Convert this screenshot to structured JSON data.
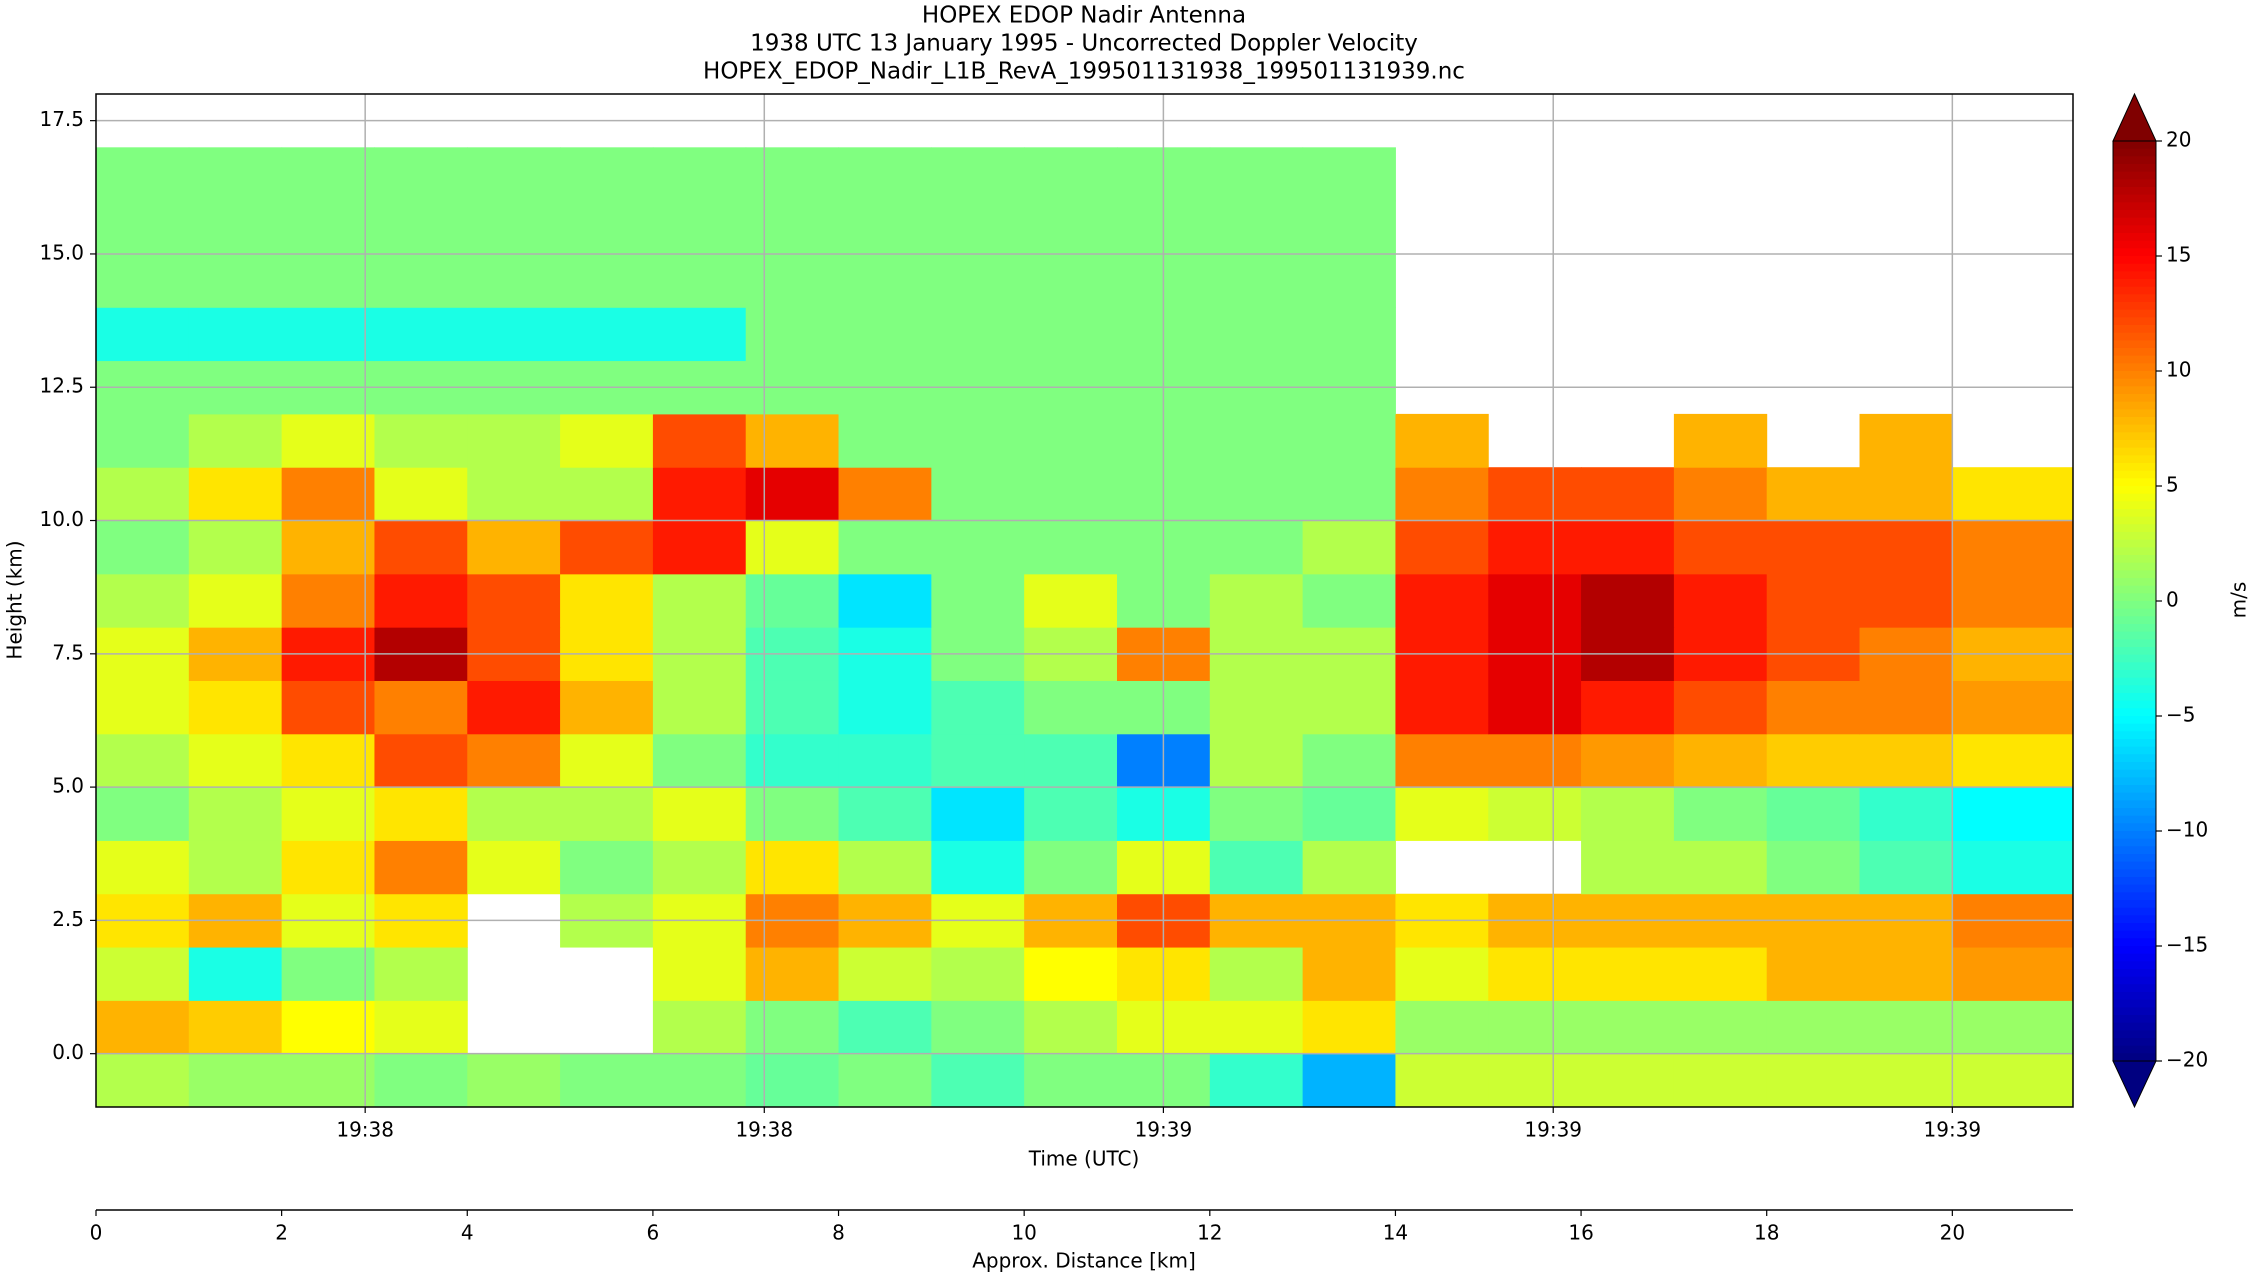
{
  "chart_data": {
    "type": "heatmap",
    "title": "HOPEX EDOP Nadir Antenna",
    "subtitle": [
      "1938 UTC 13 January 1995 - Uncorrected Doppler Velocity",
      "HOPEX_EDOP_Nadir_L1B_RevA_199501131938_199501131939.nc"
    ],
    "xlabel": "Time (UTC)",
    "ylabel": "Height (km)",
    "distance_label": "Approx. Distance [km]",
    "xlim": [
      0,
      21.3
    ],
    "ylim": [
      -1,
      18
    ],
    "xticks": [
      {
        "value": 2.9,
        "label": "19:38"
      },
      {
        "value": 7.2,
        "label": "19:38"
      },
      {
        "value": 11.5,
        "label": "19:39"
      },
      {
        "value": 15.7,
        "label": "19:39"
      },
      {
        "value": 20,
        "label": "19:39"
      }
    ],
    "distance_ticks": [
      0,
      2,
      4,
      6,
      8,
      10,
      12,
      14,
      16,
      18,
      20
    ],
    "yticks": [
      {
        "value": 0,
        "label": "0.0"
      },
      2.5,
      {
        "value": 5,
        "label": "5.0"
      },
      7.5,
      {
        "value": 10,
        "label": "10.0"
      },
      12.5,
      {
        "value": 15,
        "label": "15.0"
      },
      17.5
    ],
    "grid": true,
    "xbins": [
      0,
      1,
      2,
      3,
      4,
      5,
      6,
      7,
      8,
      9,
      10,
      11,
      12,
      13,
      14,
      15,
      16,
      17,
      18,
      19,
      20,
      21.3
    ],
    "ybins": [
      -1,
      0,
      1,
      2,
      3,
      4,
      5,
      6,
      7,
      8,
      9,
      10,
      11,
      12,
      13,
      14,
      15,
      16,
      17,
      18
    ],
    "values": [
      [
        2,
        1,
        1,
        0,
        1,
        0,
        0,
        -1,
        0,
        -2,
        0,
        0,
        -3,
        -8,
        3,
        3,
        3,
        3,
        3,
        3,
        3
      ],
      [
        8,
        7,
        5,
        4,
        null,
        null,
        2,
        0,
        -2,
        0,
        2,
        4,
        4,
        6,
        1,
        1,
        1,
        1,
        1,
        1,
        1
      ],
      [
        3,
        -4,
        0,
        2,
        null,
        null,
        4,
        8,
        3,
        2,
        5,
        6,
        2,
        8,
        4,
        6,
        6,
        6,
        8,
        8,
        9
      ],
      [
        6,
        8,
        4,
        6,
        null,
        2,
        4,
        10,
        8,
        4,
        8,
        12,
        8,
        8,
        6,
        8,
        8,
        8,
        8,
        8,
        10
      ],
      [
        4,
        2,
        6,
        10,
        4,
        0,
        2,
        6,
        2,
        -4,
        0,
        4,
        -2,
        2,
        null,
        null,
        2,
        2,
        0,
        -2,
        -4
      ],
      [
        0,
        2,
        4,
        6,
        2,
        2,
        4,
        0,
        -2,
        -6,
        -2,
        -4,
        0,
        -1,
        4,
        3,
        2,
        0,
        -1,
        -3,
        -5
      ],
      [
        2,
        4,
        6,
        12,
        10,
        4,
        0,
        -3,
        -3,
        -2,
        -2,
        -10,
        2,
        0,
        10,
        10,
        9,
        8,
        7,
        7,
        6
      ],
      [
        4,
        6,
        12,
        10,
        14,
        8,
        2,
        -2,
        -4,
        -2,
        0,
        0,
        2,
        2,
        14,
        16,
        14,
        12,
        10,
        10,
        9
      ],
      [
        4,
        8,
        14,
        18,
        12,
        6,
        2,
        -2,
        -4,
        0,
        2,
        10,
        2,
        2,
        14,
        16,
        18,
        14,
        12,
        10,
        8
      ],
      [
        2,
        4,
        10,
        14,
        12,
        6,
        2,
        -1,
        -6,
        0,
        4,
        0,
        2,
        0,
        14,
        16,
        18,
        14,
        12,
        12,
        10
      ],
      [
        0,
        2,
        8,
        12,
        8,
        12,
        14,
        4,
        0,
        0,
        0,
        0,
        0,
        2,
        12,
        14,
        14,
        12,
        12,
        12,
        10
      ],
      [
        2,
        6,
        10,
        4,
        2,
        2,
        14,
        16,
        10,
        0,
        0,
        0,
        0,
        0,
        10,
        12,
        12,
        10,
        8,
        8,
        6
      ],
      [
        0,
        2,
        4,
        2,
        2,
        4,
        12,
        8,
        0,
        0,
        0,
        0,
        0,
        0,
        8,
        null,
        null,
        8,
        null,
        8,
        null
      ],
      [
        0,
        0,
        0,
        0,
        0,
        0,
        0,
        0,
        0,
        0,
        0,
        0,
        0,
        0,
        null,
        null,
        null,
        null,
        null,
        null,
        null
      ],
      [
        -4,
        -4,
        -4,
        -4,
        -4,
        -4,
        -4,
        0,
        0,
        0,
        0,
        0,
        0,
        0,
        null,
        null,
        null,
        null,
        null,
        null,
        null
      ],
      [
        0,
        0,
        0,
        0,
        0,
        0,
        0,
        0,
        0,
        0,
        0,
        0,
        0,
        0,
        null,
        null,
        null,
        null,
        null,
        null,
        null
      ],
      [
        0,
        0,
        0,
        0,
        0,
        0,
        0,
        0,
        0,
        0,
        0,
        0,
        0,
        0,
        null,
        null,
        null,
        null,
        null,
        null,
        null
      ],
      [
        0,
        0,
        0,
        0,
        0,
        0,
        0,
        0,
        0,
        0,
        0,
        0,
        0,
        0,
        null,
        null,
        null,
        null,
        null,
        null,
        null
      ],
      [
        null,
        null,
        null,
        null,
        null,
        null,
        null,
        null,
        null,
        null,
        null,
        null,
        null,
        null,
        null,
        null,
        null,
        null,
        null,
        null,
        null
      ]
    ],
    "colorbar": {
      "label": "m/s",
      "colormap": "jet",
      "lim": [
        -20,
        20
      ],
      "ticks": [
        {
          "value": -20,
          "label": "−20"
        },
        {
          "value": -15,
          "label": "−15"
        },
        {
          "value": -10,
          "label": "−10"
        },
        {
          "value": -5,
          "label": "−5"
        },
        0,
        5,
        10,
        15,
        20
      ]
    }
  }
}
